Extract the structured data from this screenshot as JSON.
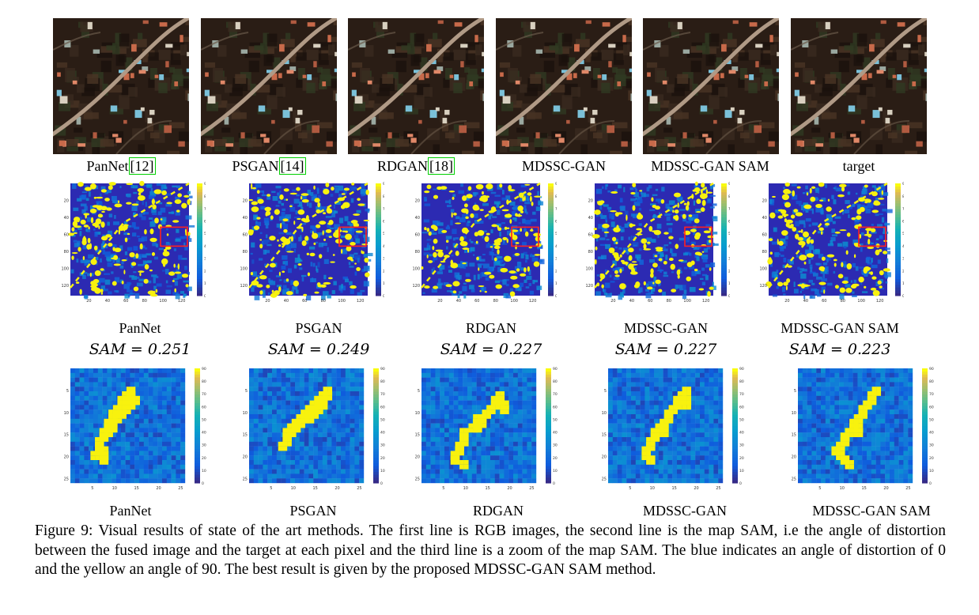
{
  "rgb_row": {
    "labels": [
      "PanNet",
      "PSGAN",
      "RDGAN",
      "MDSSC-GAN",
      "MDSSC-GAN SAM",
      "target"
    ],
    "refs": [
      "[12]",
      "[14]",
      "[18]",
      "",
      "",
      ""
    ]
  },
  "sam_row": {
    "methods": [
      "PanNet",
      "PSGAN",
      "RDGAN",
      "MDSSC-GAN",
      "MDSSC-GAN SAM"
    ],
    "sam_values": [
      "SAM = 0.251",
      "SAM = 0.249",
      "SAM = 0.227",
      "SAM = 0.227",
      "SAM = 0.223"
    ],
    "x_ticks": [
      "20",
      "40",
      "60",
      "80",
      "100",
      "120"
    ],
    "y_ticks": [
      "20",
      "40",
      "60",
      "80",
      "100",
      "120"
    ],
    "colorbar_ticks": [
      "0",
      "10",
      "20",
      "30",
      "40",
      "50",
      "60",
      "70",
      "80",
      "90"
    ]
  },
  "zoom_row": {
    "methods": [
      "PanNet",
      "PSGAN",
      "RDGAN",
      "MDSSC-GAN",
      "MDSSC-GAN SAM"
    ],
    "x_ticks": [
      "5",
      "10",
      "15",
      "20",
      "25"
    ],
    "y_ticks": [
      "5",
      "10",
      "15",
      "20",
      "25"
    ],
    "colorbar_ticks": [
      "0",
      "10",
      "20",
      "30",
      "40",
      "50",
      "60",
      "70",
      "80",
      "90"
    ]
  },
  "caption": "Figure 9: Visual results of state of the art methods. The first line is RGB images, the second line is the map SAM, i.e the angle of distortion between the fused image and the target at each pixel and the third line is a zoom of the map SAM. The blue indicates an angle of distortion of 0 and the yellow an angle of 90. The best result is given by the proposed MDSSC-GAN SAM method.",
  "colors": {
    "map_blue": "#3b2fb0",
    "map_yellow": "#f8f20e",
    "highlight_box": "#ff2020",
    "ref_box": "#00d000"
  }
}
